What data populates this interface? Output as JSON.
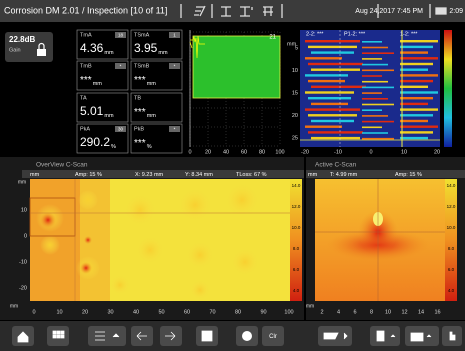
{
  "header": {
    "title": "Corrosion DM 2.01 / Inspection [10 of 11]",
    "datetime": "Aug 24,2017 7:45 PM",
    "battery": "2:09"
  },
  "gain": {
    "value": "22.8dB",
    "label": "Gain"
  },
  "readouts": [
    {
      "label": "TmA",
      "badge": "18",
      "value": "4.36",
      "unit": "mm"
    },
    {
      "label": "TSmA",
      "badge": "1",
      "value": "3.95",
      "unit": "mm"
    },
    {
      "label": "TmB",
      "badge": "*",
      "value": "***",
      "unit": "mm"
    },
    {
      "label": "TSmB",
      "badge": "*",
      "value": "***",
      "unit": "mm"
    },
    {
      "label": "TA",
      "badge": "",
      "value": "5.01",
      "unit": "mm"
    },
    {
      "label": "TB",
      "badge": "",
      "value": "***",
      "unit": "mm"
    },
    {
      "label": "PkA",
      "badge": "30",
      "value": "290.2",
      "unit": "%"
    },
    {
      "label": "PkB",
      "badge": "*",
      "value": "***",
      "unit": "%"
    }
  ],
  "ascan": {
    "gate_label": "21",
    "xticks": [
      "0",
      "20",
      "40",
      "60",
      "80",
      "100"
    ]
  },
  "bscan": {
    "unit": "mm",
    "cursors": [
      "2-2: ***",
      "P1-2: ***",
      "1-2: ***"
    ],
    "yticks": [
      "5",
      "10",
      "15",
      "20",
      "25"
    ],
    "xticks": [
      "-20",
      "-10",
      "0",
      "10",
      "20"
    ],
    "scale": [
      "100",
      "80",
      "60",
      "40",
      "20",
      "0"
    ]
  },
  "overview": {
    "title": "OverView C-Scan",
    "status": [
      "mm",
      "Amp: 15 %",
      "X: 9.23 mm",
      "Y: 8.34 mm",
      "TLoss: 67 %"
    ],
    "unit": "mm",
    "yticks": [
      "10",
      "0",
      "-10",
      "-20"
    ],
    "xticks": [
      "0",
      "10",
      "20",
      "30",
      "40",
      "50",
      "60",
      "70",
      "80",
      "90",
      "100"
    ],
    "x_unit": "mm",
    "scale": [
      "14.0",
      "12.0",
      "10.0",
      "8.0",
      "6.0",
      "4.0"
    ]
  },
  "active": {
    "title": "Active C-Scan",
    "status": [
      "mm",
      "T: 4.99 mm",
      "Amp: 15 %"
    ],
    "xticks": [
      "2",
      "4",
      "6",
      "8",
      "10",
      "12",
      "14",
      "16"
    ],
    "x_unit": "mm",
    "scale": [
      "14.0",
      "12.0",
      "10.0",
      "8.0",
      "6.0",
      "4.0"
    ]
  },
  "toolbar": {
    "clear": "Clr"
  }
}
